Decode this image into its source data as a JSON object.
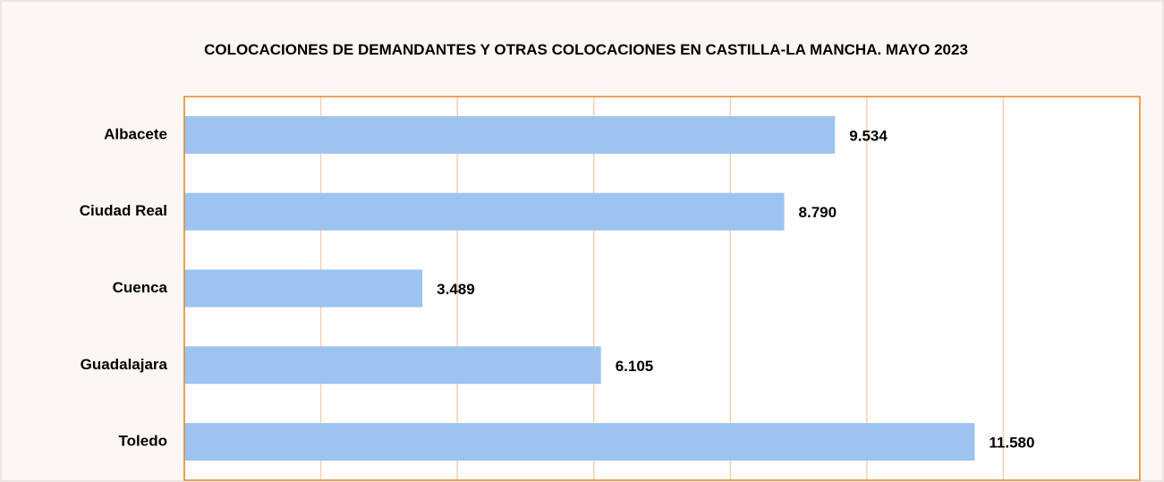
{
  "chart_data": {
    "type": "bar",
    "orientation": "horizontal",
    "title": "COLOCACIONES DE DEMANDANTES Y OTRAS COLOCACIONES EN CASTILLA-LA MANCHA. MAYO 2023",
    "categories": [
      "Albacete",
      "Ciudad Real",
      "Cuenca",
      "Guadalajara",
      "Toledo"
    ],
    "values": [
      9534,
      8790,
      3489,
      6105,
      11580
    ],
    "value_labels": [
      "9.534",
      "8.790",
      "3.489",
      "6.105",
      "11.580"
    ],
    "color": "#9dc3f0",
    "xlim": [
      0,
      14000
    ],
    "xticks": [
      0,
      2000,
      4000,
      6000,
      8000,
      10000,
      12000,
      14000
    ],
    "grid": true
  }
}
